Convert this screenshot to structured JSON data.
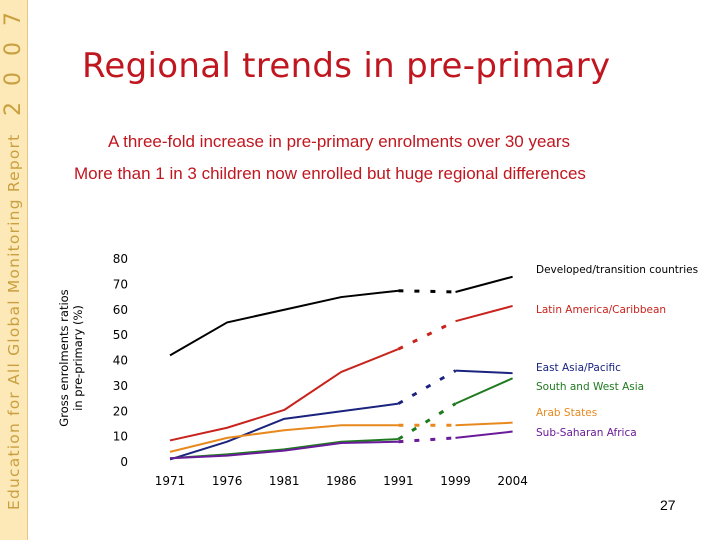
{
  "brand": {
    "year_digits": [
      "7",
      "0",
      "0",
      "2"
    ],
    "vertical_text": "Education for All Global Monitoring Report"
  },
  "title": "Regional trends in pre-primary",
  "subtitles": [
    "A three-fold increase in pre-primary enrolments over 30 years",
    "More than 1 in 3 children now enrolled  but huge regional differences"
  ],
  "page_number": "27",
  "chart_data": {
    "type": "line",
    "title": "",
    "xlabel": "",
    "ylabel": [
      "Gross enrolments ratios",
      "in pre-primary (%)"
    ],
    "ylim": [
      0,
      80
    ],
    "yticks": [
      0,
      10,
      20,
      30,
      40,
      50,
      60,
      70,
      80
    ],
    "x": [
      "1971",
      "1976",
      "1981",
      "1986",
      "1991",
      "1999",
      "2004"
    ],
    "grid": false,
    "legend": "right, labels beside line ends",
    "gap_dashed_between": [
      "1991",
      "1999"
    ],
    "series": [
      {
        "name": "Developed/transition countries",
        "color": "#000000",
        "values": [
          42,
          55,
          60,
          65,
          67.5,
          67,
          73
        ]
      },
      {
        "name": "Latin America/Caribbean",
        "color": "#c8231c",
        "values": [
          8.5,
          13.5,
          20.5,
          35.5,
          44.5,
          55.5,
          61.5
        ]
      },
      {
        "name": "East Asia/Pacific",
        "color": "#1a237e",
        "values": [
          1,
          8,
          17,
          20,
          23,
          36,
          35
        ]
      },
      {
        "name": "South and West Asia",
        "color": "#1f7a1f",
        "values": [
          1.5,
          3,
          5,
          8,
          9,
          23,
          33
        ]
      },
      {
        "name": "Arab States",
        "color": "#e8891e",
        "values": [
          4,
          9.5,
          12.5,
          14.5,
          14.5,
          14.5,
          15.5
        ]
      },
      {
        "name": "Sub-Saharan Africa",
        "color": "#6a1b9a",
        "values": [
          1.5,
          2.5,
          4.5,
          7.5,
          8,
          9.5,
          12
        ]
      }
    ]
  }
}
